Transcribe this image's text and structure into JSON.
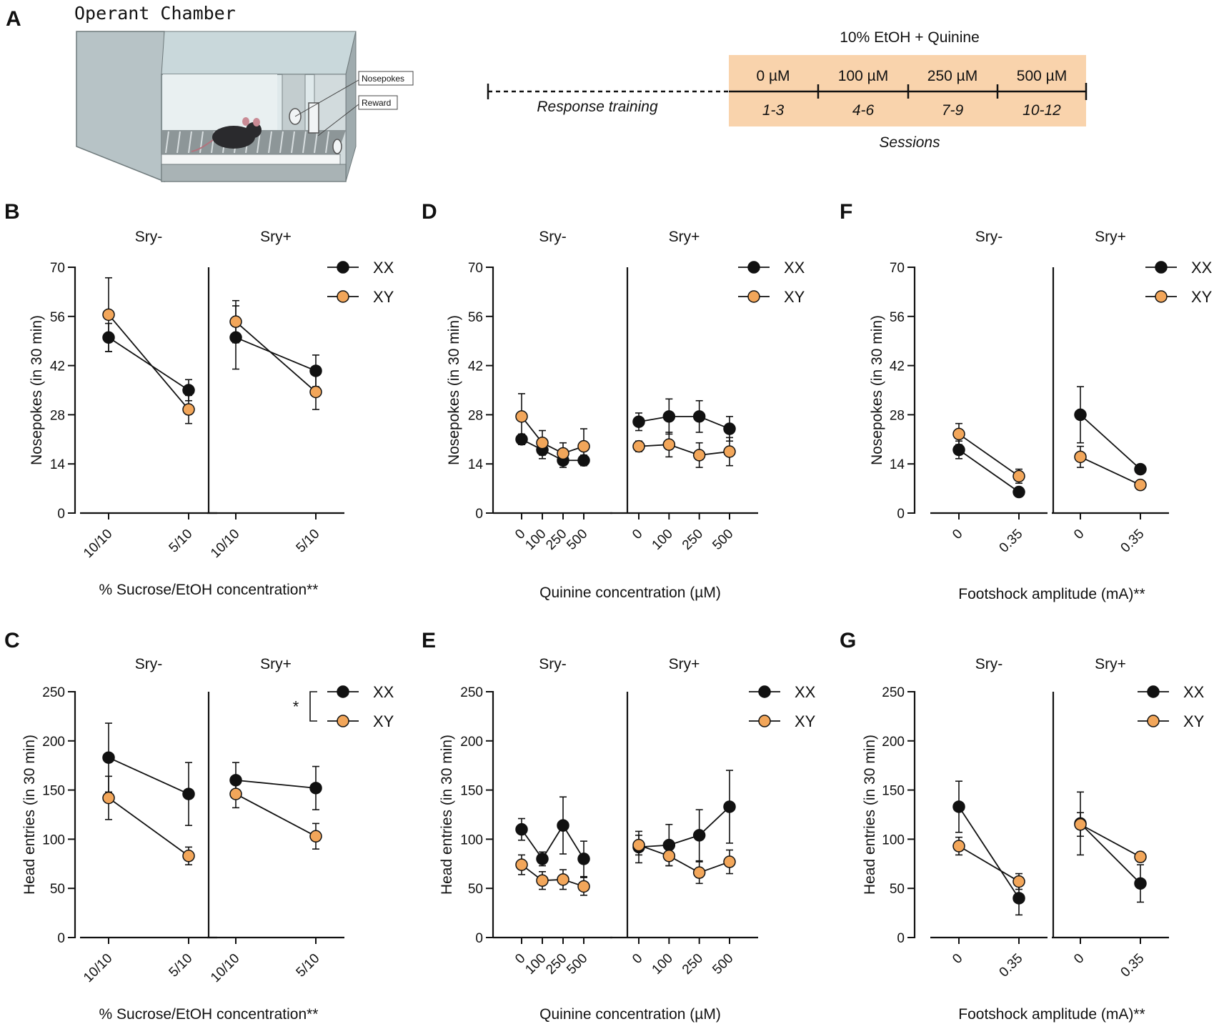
{
  "figure": {
    "colors": {
      "xx": "#111111",
      "xy": "#f2a65a",
      "timeline_bg": "#f9d3ac"
    },
    "panel_a": {
      "label": "A",
      "chamber_title": "Operant Chamber",
      "callouts": [
        "Nosepokes",
        "Reward"
      ],
      "timeline": {
        "header": "10% EtOH  + Quinine",
        "training_label": "Response training",
        "concentrations": [
          "0 µM",
          "100 µM",
          "250 µM",
          "500 µM"
        ],
        "sessions": [
          "1-3",
          "4-6",
          "7-9",
          "10-12"
        ],
        "sessions_label": "Sessions"
      }
    },
    "legend": {
      "xx": "XX",
      "xy": "XY"
    },
    "sig_star": "*"
  },
  "chart_data": [
    {
      "id": "B",
      "type": "line",
      "label": "B",
      "groups": [
        "Sry-",
        "Sry+"
      ],
      "categories": [
        "10/10",
        "5/10"
      ],
      "ylabel": "Nosepokes (in 30 min)",
      "xlabel": "% Sucrose/EtOH concentration**",
      "ylim": [
        0,
        70
      ],
      "yticks": [
        0,
        14,
        28,
        42,
        56,
        70
      ],
      "series": [
        {
          "name": "XX",
          "values": [
            [
              50,
              35
            ],
            [
              50,
              40.5
            ]
          ],
          "err": [
            [
              4,
              3
            ],
            [
              9,
              4.5
            ]
          ]
        },
        {
          "name": "XY",
          "values": [
            [
              56.5,
              29.5
            ],
            [
              54.5,
              34.5
            ]
          ],
          "err": [
            [
              10.5,
              4
            ],
            [
              6,
              5
            ]
          ]
        }
      ]
    },
    {
      "id": "C",
      "type": "line",
      "label": "C",
      "groups": [
        "Sry-",
        "Sry+"
      ],
      "categories": [
        "10/10",
        "5/10"
      ],
      "ylabel": "Head entries (in 30 min)",
      "xlabel": "% Sucrose/EtOH concentration**",
      "ylim": [
        0,
        250
      ],
      "yticks": [
        0,
        50,
        100,
        150,
        200,
        250
      ],
      "series": [
        {
          "name": "XX",
          "values": [
            [
              183,
              146
            ],
            [
              160,
              152
            ]
          ],
          "err": [
            [
              35,
              32
            ],
            [
              18,
              22
            ]
          ]
        },
        {
          "name": "XY",
          "values": [
            [
              142,
              83
            ],
            [
              146,
              103
            ]
          ],
          "err": [
            [
              22,
              9
            ],
            [
              14,
              13
            ]
          ]
        }
      ]
    },
    {
      "id": "D",
      "type": "line",
      "label": "D",
      "groups": [
        "Sry-",
        "Sry+"
      ],
      "categories": [
        "0",
        "100",
        "250",
        "500"
      ],
      "ylabel": "Nosepokes (in 30 min)",
      "xlabel": "Quinine concentration (µM)",
      "ylim": [
        0,
        70
      ],
      "yticks": [
        0,
        14,
        28,
        42,
        56,
        70
      ],
      "series": [
        {
          "name": "XX",
          "values": [
            [
              21,
              18,
              15,
              15
            ],
            [
              26,
              27.5,
              27.5,
              24
            ]
          ],
          "err": [
            [
              1.5,
              2.5,
              2,
              1.5
            ],
            [
              2.5,
              5,
              4.5,
              3.5
            ]
          ]
        },
        {
          "name": "XY",
          "values": [
            [
              27.5,
              20,
              17,
              19
            ],
            [
              19,
              19.5,
              16.5,
              17.5
            ]
          ],
          "err": [
            [
              6.5,
              3.5,
              3,
              5
            ],
            [
              1.5,
              3.5,
              3.5,
              4
            ]
          ]
        }
      ]
    },
    {
      "id": "E",
      "type": "line",
      "label": "E",
      "groups": [
        "Sry-",
        "Sry+"
      ],
      "categories": [
        "0",
        "100",
        "250",
        "500"
      ],
      "ylabel": "Head entries (in 30 min)",
      "xlabel": "Quinine concentration (µM)",
      "ylim": [
        0,
        250
      ],
      "yticks": [
        0,
        50,
        100,
        150,
        200,
        250
      ],
      "series": [
        {
          "name": "XX",
          "values": [
            [
              110,
              80,
              114,
              80
            ],
            [
              92,
              94,
              104,
              133
            ]
          ],
          "err": [
            [
              11,
              7,
              29,
              18
            ],
            [
              16,
              21,
              26,
              37
            ]
          ]
        },
        {
          "name": "XY",
          "values": [
            [
              74,
              58,
              59,
              52
            ],
            [
              94,
              83,
              66,
              77
            ]
          ],
          "err": [
            [
              10,
              9,
              10,
              9
            ],
            [
              10,
              10,
              11,
              12
            ]
          ]
        }
      ]
    },
    {
      "id": "F",
      "type": "line",
      "label": "F",
      "groups": [
        "Sry-",
        "Sry+"
      ],
      "categories": [
        "0",
        "0.35"
      ],
      "ylabel": "Nosepokes (in 30 min)",
      "xlabel": "Footshock amplitude (mA)**",
      "ylim": [
        0,
        70
      ],
      "yticks": [
        0,
        14,
        28,
        42,
        56,
        70
      ],
      "series": [
        {
          "name": "XX",
          "values": [
            [
              18,
              6
            ],
            [
              28,
              12.5
            ]
          ],
          "err": [
            [
              2.5,
              1
            ],
            [
              8,
              1
            ]
          ]
        },
        {
          "name": "XY",
          "values": [
            [
              22.5,
              10.5
            ],
            [
              16,
              8
            ]
          ],
          "err": [
            [
              3,
              2
            ],
            [
              3,
              1
            ]
          ]
        }
      ]
    },
    {
      "id": "G",
      "type": "line",
      "label": "G",
      "groups": [
        "Sry-",
        "Sry+"
      ],
      "categories": [
        "0",
        "0.35"
      ],
      "ylabel": "Head entries (in 30 min)",
      "xlabel": "Footshock amplitude (mA)**",
      "ylim": [
        0,
        250
      ],
      "yticks": [
        0,
        50,
        100,
        150,
        200,
        250
      ],
      "series": [
        {
          "name": "XX",
          "values": [
            [
              133,
              40
            ],
            [
              116,
              55
            ]
          ],
          "err": [
            [
              26,
              17
            ],
            [
              32,
              19
            ]
          ]
        },
        {
          "name": "XY",
          "values": [
            [
              93,
              57
            ],
            [
              115,
              82
            ]
          ],
          "err": [
            [
              9,
              8
            ],
            [
              12,
              5
            ]
          ]
        }
      ]
    }
  ]
}
